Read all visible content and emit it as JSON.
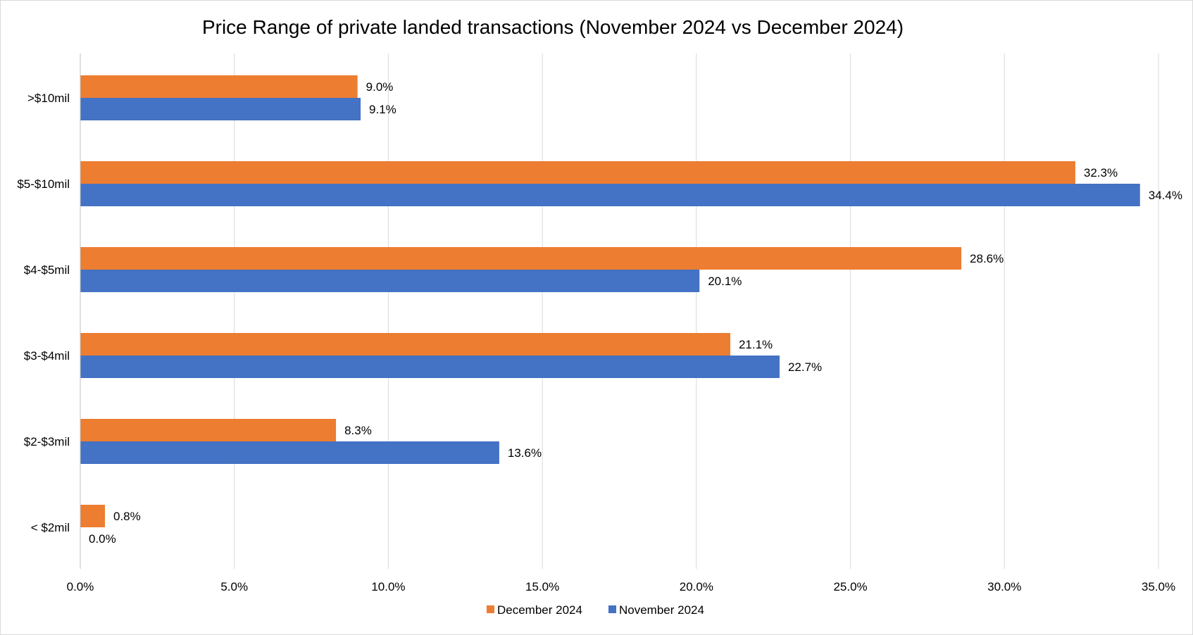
{
  "chart_data": {
    "type": "bar",
    "orientation": "horizontal",
    "title": "Price Range of private landed transactions (November 2024 vs December 2024)",
    "xlabel": "",
    "ylabel": "",
    "xlim": [
      0,
      35
    ],
    "x_ticks": [
      "0.0%",
      "5.0%",
      "10.0%",
      "15.0%",
      "20.0%",
      "25.0%",
      "30.0%",
      "35.0%"
    ],
    "grid": "vertical",
    "legend_position": "bottom",
    "categories": [
      ">$10mil",
      "$5-$10mil",
      "$4-$5mil",
      "$3-$4mil",
      "$2-$3mil",
      "< $2mil"
    ],
    "series": [
      {
        "name": "December 2024",
        "color": "#ed7d31",
        "values": [
          9.0,
          32.3,
          28.6,
          21.1,
          8.3,
          0.8
        ],
        "labels": [
          "9.0%",
          "32.3%",
          "28.6%",
          "21.1%",
          "8.3%",
          "0.8%"
        ]
      },
      {
        "name": "November 2024",
        "color": "#4472c4",
        "values": [
          9.1,
          34.4,
          20.1,
          22.7,
          13.6,
          0.0
        ],
        "labels": [
          "9.1%",
          "34.4%",
          "20.1%",
          "22.7%",
          "13.6%",
          "0.0%"
        ]
      }
    ],
    "colors": {
      "grid": "#d9d9d9",
      "axis": "#bfbfbf",
      "text": "#000000"
    }
  }
}
